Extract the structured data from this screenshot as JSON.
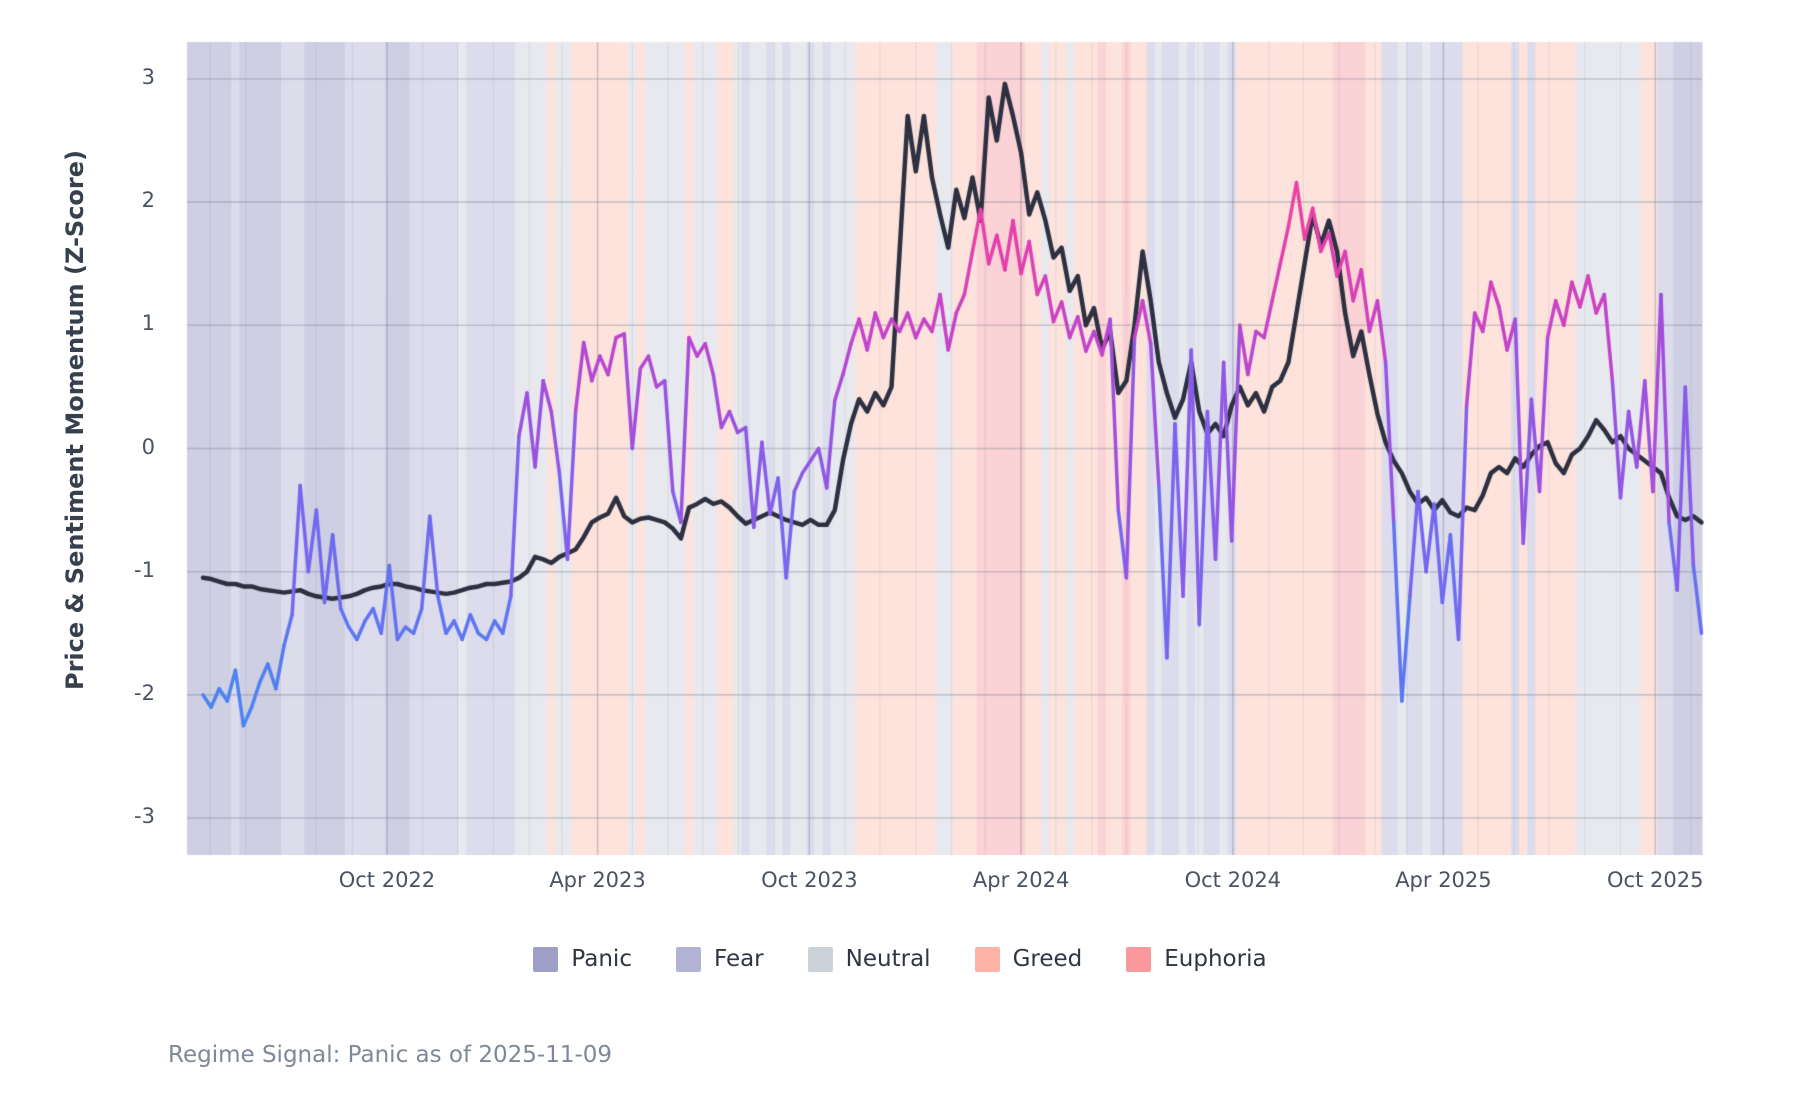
{
  "figure": {
    "footnote": "Regime Signal: Panic as of 2025-11-09"
  },
  "legend": {
    "items": [
      {
        "label": "Panic",
        "color": "#9e9ec7"
      },
      {
        "label": "Fear",
        "color": "#b3b3d6"
      },
      {
        "label": "Neutral",
        "color": "#ccd2da"
      },
      {
        "label": "Greed",
        "color": "#ffb3a6"
      },
      {
        "label": "Euphoria",
        "color": "#f9999e"
      }
    ]
  },
  "chart_data": {
    "type": "line",
    "title": "",
    "xlabel": "",
    "ylabel": "Price & Sentiment Momentum (Z-Score)",
    "ylim": [
      -3.3,
      3.3
    ],
    "grid": true,
    "legend_position": "bottom",
    "y_ticks": [
      3,
      2,
      1,
      0,
      -1,
      -2,
      -3
    ],
    "y_tick_labels": [
      "3",
      "2",
      "1",
      "0",
      "-1",
      "-2",
      "-3"
    ],
    "x_ticks": [
      {
        "label": "Oct 2022",
        "week": 22.71
      },
      {
        "label": "Apr 2023",
        "week": 48.71
      },
      {
        "label": "Oct 2023",
        "week": 74.86
      },
      {
        "label": "Apr 2024",
        "week": 101.0
      },
      {
        "label": "Oct 2024",
        "week": 127.14
      },
      {
        "label": "Apr 2025",
        "week": 153.14
      },
      {
        "label": "Oct 2025",
        "week": 179.29
      }
    ],
    "start_date": "2022-04-25",
    "interval_days": 7,
    "n_points": 186,
    "signal": {
      "regime": "Panic",
      "as_of": "2025-11-09"
    },
    "regime_codes": {
      "P": "Panic",
      "F": "Fear",
      "N": "Neutral",
      "G": "Greed",
      "E": "Euphoria"
    },
    "regime_band_colors": {
      "P": "#cfcfe3",
      "F": "#dcdcec",
      "N": "#e7e9ee",
      "G": "#fde3dc",
      "E": "#fbd2d5"
    },
    "regimes": "PPPPFPPPPPFFFPPPPPFFFFFPPPFFFFFFNFFFFFFNNNNGNNGGGGGGGNGNNNNNGNNNGGNFNNFNFNNFNFNNNGGGGGGGGGGNNGGGEEEEEEGGNGGNGGGEGGEGGFNFFNFNFFNFGGGGGGGGGGGGEEEEGGFFNFFNFFFFGGGGGGFGFGGGGGNNNNNNNNGGFFPPPP",
    "series": [
      {
        "name": "price_momentum",
        "color": "#2d3041",
        "width": 4.5,
        "values": [
          -1.05,
          -1.06,
          -1.08,
          -1.1,
          -1.1,
          -1.12,
          -1.12,
          -1.14,
          -1.15,
          -1.16,
          -1.17,
          -1.16,
          -1.15,
          -1.18,
          -1.2,
          -1.21,
          -1.22,
          -1.21,
          -1.2,
          -1.18,
          -1.15,
          -1.13,
          -1.12,
          -1.1,
          -1.1,
          -1.12,
          -1.13,
          -1.15,
          -1.16,
          -1.17,
          -1.18,
          -1.17,
          -1.15,
          -1.13,
          -1.12,
          -1.1,
          -1.1,
          -1.09,
          -1.08,
          -1.05,
          -1.0,
          -0.88,
          -0.9,
          -0.93,
          -0.88,
          -0.85,
          -0.82,
          -0.72,
          -0.6,
          -0.56,
          -0.53,
          -0.4,
          -0.55,
          -0.6,
          -0.57,
          -0.56,
          -0.58,
          -0.6,
          -0.65,
          -0.73,
          -0.48,
          -0.45,
          -0.41,
          -0.45,
          -0.43,
          -0.48,
          -0.55,
          -0.61,
          -0.58,
          -0.55,
          -0.52,
          -0.55,
          -0.58,
          -0.6,
          -0.62,
          -0.58,
          -0.62,
          -0.62,
          -0.5,
          -0.1,
          0.2,
          0.4,
          0.3,
          0.45,
          0.35,
          0.5,
          1.6,
          2.7,
          2.25,
          2.7,
          2.2,
          1.9,
          1.63,
          2.1,
          1.87,
          2.2,
          1.85,
          2.85,
          2.5,
          2.96,
          2.7,
          2.4,
          1.9,
          2.08,
          1.85,
          1.55,
          1.63,
          1.28,
          1.4,
          1.0,
          1.14,
          0.81,
          0.95,
          0.45,
          0.55,
          1.0,
          1.6,
          1.2,
          0.7,
          0.45,
          0.25,
          0.4,
          0.7,
          0.3,
          0.12,
          0.2,
          0.1,
          0.35,
          0.5,
          0.35,
          0.45,
          0.3,
          0.5,
          0.55,
          0.7,
          1.1,
          1.5,
          1.9,
          1.65,
          1.85,
          1.6,
          1.1,
          0.75,
          0.95,
          0.6,
          0.28,
          0.05,
          -0.1,
          -0.2,
          -0.35,
          -0.45,
          -0.4,
          -0.5,
          -0.42,
          -0.52,
          -0.55,
          -0.48,
          -0.5,
          -0.38,
          -0.2,
          -0.15,
          -0.2,
          -0.08,
          -0.15,
          -0.05,
          0.02,
          0.05,
          -0.12,
          -0.2,
          -0.05,
          0.0,
          0.1,
          0.23,
          0.15,
          0.05,
          0.1,
          0.0,
          -0.05,
          -0.1,
          -0.15,
          -0.2,
          -0.4,
          -0.55,
          -0.58,
          -0.55,
          -0.6
        ]
      },
      {
        "name": "sentiment_momentum",
        "width": 3.5,
        "color_by_value": true,
        "colormap_domain": [
          -2.4,
          2.3
        ],
        "colormap": [
          [
            0.0,
            "#418cf0"
          ],
          [
            0.22,
            "#5f74f2"
          ],
          [
            0.4,
            "#7e62ee"
          ],
          [
            0.55,
            "#9b51e0"
          ],
          [
            0.7,
            "#c044cd"
          ],
          [
            0.85,
            "#e23fae"
          ],
          [
            1.0,
            "#f7449b"
          ]
        ],
        "values": [
          -2.0,
          -2.1,
          -1.95,
          -2.05,
          -1.8,
          -2.25,
          -2.1,
          -1.9,
          -1.75,
          -1.95,
          -1.6,
          -1.35,
          -0.3,
          -1.0,
          -0.5,
          -1.25,
          -0.7,
          -1.3,
          -1.45,
          -1.55,
          -1.4,
          -1.3,
          -1.5,
          -0.95,
          -1.55,
          -1.45,
          -1.5,
          -1.3,
          -0.55,
          -1.2,
          -1.5,
          -1.4,
          -1.55,
          -1.35,
          -1.5,
          -1.55,
          -1.4,
          -1.5,
          -1.2,
          0.1,
          0.45,
          -0.15,
          0.55,
          0.3,
          -0.2,
          -0.9,
          0.3,
          0.86,
          0.55,
          0.75,
          0.6,
          0.9,
          0.93,
          0.0,
          0.65,
          0.75,
          0.5,
          0.55,
          -0.35,
          -0.6,
          0.9,
          0.75,
          0.85,
          0.6,
          0.17,
          0.3,
          0.13,
          0.17,
          -0.64,
          0.05,
          -0.53,
          -0.24,
          -1.05,
          -0.35,
          -0.2,
          -0.1,
          0.0,
          -0.32,
          0.39,
          0.6,
          0.85,
          1.05,
          0.8,
          1.1,
          0.9,
          1.05,
          0.95,
          1.1,
          0.9,
          1.05,
          0.95,
          1.25,
          0.8,
          1.1,
          1.25,
          1.6,
          1.94,
          1.5,
          1.73,
          1.45,
          1.85,
          1.42,
          1.68,
          1.25,
          1.4,
          1.03,
          1.19,
          0.9,
          1.07,
          0.79,
          0.95,
          0.76,
          1.05,
          -0.5,
          -1.05,
          0.9,
          1.2,
          0.85,
          -0.3,
          -1.7,
          0.2,
          -1.2,
          0.8,
          -1.43,
          0.3,
          -0.9,
          0.7,
          -0.75,
          1.0,
          0.6,
          0.95,
          0.9,
          1.2,
          1.5,
          1.8,
          2.16,
          1.7,
          1.95,
          1.6,
          1.75,
          1.4,
          1.6,
          1.2,
          1.45,
          0.95,
          1.2,
          0.7,
          -0.6,
          -2.05,
          -1.2,
          -0.35,
          -1.0,
          -0.45,
          -1.25,
          -0.7,
          -1.55,
          0.35,
          1.1,
          0.95,
          1.35,
          1.15,
          0.8,
          1.05,
          -0.77,
          0.4,
          -0.35,
          0.9,
          1.2,
          1.0,
          1.35,
          1.15,
          1.4,
          1.1,
          1.25,
          0.55,
          -0.4,
          0.3,
          -0.15,
          0.55,
          -0.35,
          1.25,
          -0.6,
          -1.15,
          0.5,
          -0.95,
          -1.5
        ]
      }
    ]
  }
}
